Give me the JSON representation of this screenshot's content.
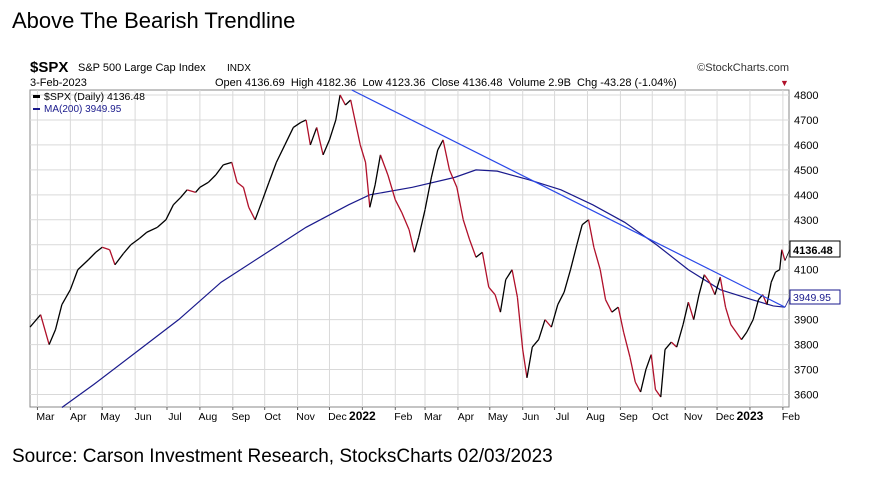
{
  "page": {
    "title": "Above The Bearish Trendline",
    "source": "Source: Carson Investment Research, StocksCharts 02/03/2023"
  },
  "header": {
    "symbol": "$SPX",
    "name": "S&P 500 Large Cap Index",
    "exchange": "INDX",
    "watermark": "©StockCharts.com",
    "date": "3-Feb-2023",
    "quote": "Open 4136.69  High 4182.36  Low 4123.36  Close 4136.48  Volume 2.9B  Chg -43.28 (-1.04%)",
    "chg_arrow": "▼"
  },
  "legend": {
    "price": "$SPX (Daily) 4136.48",
    "ma": "MA(200) 3949.95"
  },
  "colors": {
    "price_up": "#000000",
    "price_down": "#b0102a",
    "ma": "#1a1a8c",
    "trendline": "#2a48e8",
    "grid": "#d9d9d9"
  },
  "chart_data": {
    "type": "line",
    "title": "$SPX S&P 500 Large Cap Index",
    "xlabel": "",
    "ylabel": "",
    "ylim": [
      3550,
      4820
    ],
    "grid": true,
    "legend_position": "top-left",
    "x_ticks": [
      {
        "t": 7,
        "label": "Mar",
        "bold": false
      },
      {
        "t": 38,
        "label": "Apr",
        "bold": false
      },
      {
        "t": 68,
        "label": "May",
        "bold": false
      },
      {
        "t": 99,
        "label": "Jun",
        "bold": false
      },
      {
        "t": 129,
        "label": "Jul",
        "bold": false
      },
      {
        "t": 160,
        "label": "Aug",
        "bold": false
      },
      {
        "t": 191,
        "label": "Sep",
        "bold": false
      },
      {
        "t": 221,
        "label": "Oct",
        "bold": false
      },
      {
        "t": 252,
        "label": "Nov",
        "bold": false
      },
      {
        "t": 282,
        "label": "Dec",
        "bold": false
      },
      {
        "t": 313,
        "label": "2022",
        "bold": true
      },
      {
        "t": 344,
        "label": "Feb",
        "bold": false
      },
      {
        "t": 372,
        "label": "Mar",
        "bold": false
      },
      {
        "t": 403,
        "label": "Apr",
        "bold": false
      },
      {
        "t": 433,
        "label": "May",
        "bold": false
      },
      {
        "t": 464,
        "label": "Jun",
        "bold": false
      },
      {
        "t": 494,
        "label": "Jul",
        "bold": false
      },
      {
        "t": 525,
        "label": "Aug",
        "bold": false
      },
      {
        "t": 556,
        "label": "Sep",
        "bold": false
      },
      {
        "t": 586,
        "label": "Oct",
        "bold": false
      },
      {
        "t": 617,
        "label": "Nov",
        "bold": false
      },
      {
        "t": 647,
        "label": "Dec",
        "bold": false
      },
      {
        "t": 678,
        "label": "2023",
        "bold": true
      },
      {
        "t": 709,
        "label": "Feb",
        "bold": false
      }
    ],
    "y_ticks": [
      3600,
      3700,
      3800,
      3900,
      4000,
      4100,
      4200,
      4300,
      4400,
      4500,
      4600,
      4700,
      4800
    ],
    "series": [
      {
        "name": "$SPX (Daily)",
        "points": [
          [
            0,
            3870
          ],
          [
            10,
            3920
          ],
          [
            18,
            3800
          ],
          [
            24,
            3860
          ],
          [
            30,
            3960
          ],
          [
            38,
            4020
          ],
          [
            45,
            4100
          ],
          [
            55,
            4140
          ],
          [
            62,
            4170
          ],
          [
            68,
            4190
          ],
          [
            75,
            4180
          ],
          [
            80,
            4120
          ],
          [
            88,
            4165
          ],
          [
            95,
            4200
          ],
          [
            103,
            4225
          ],
          [
            110,
            4250
          ],
          [
            120,
            4270
          ],
          [
            128,
            4300
          ],
          [
            135,
            4360
          ],
          [
            142,
            4390
          ],
          [
            148,
            4420
          ],
          [
            156,
            4410
          ],
          [
            160,
            4430
          ],
          [
            168,
            4450
          ],
          [
            175,
            4480
          ],
          [
            182,
            4520
          ],
          [
            190,
            4530
          ],
          [
            195,
            4450
          ],
          [
            201,
            4430
          ],
          [
            206,
            4350
          ],
          [
            212,
            4300
          ],
          [
            219,
            4380
          ],
          [
            225,
            4450
          ],
          [
            232,
            4530
          ],
          [
            240,
            4600
          ],
          [
            248,
            4670
          ],
          [
            255,
            4690
          ],
          [
            260,
            4700
          ],
          [
            264,
            4600
          ],
          [
            270,
            4670
          ],
          [
            276,
            4560
          ],
          [
            282,
            4620
          ],
          [
            288,
            4700
          ],
          [
            292,
            4800
          ],
          [
            297,
            4760
          ],
          [
            302,
            4780
          ],
          [
            306,
            4700
          ],
          [
            311,
            4600
          ],
          [
            316,
            4530
          ],
          [
            320,
            4350
          ],
          [
            325,
            4440
          ],
          [
            330,
            4560
          ],
          [
            337,
            4480
          ],
          [
            344,
            4380
          ],
          [
            350,
            4330
          ],
          [
            357,
            4260
          ],
          [
            362,
            4170
          ],
          [
            366,
            4230
          ],
          [
            372,
            4340
          ],
          [
            378,
            4470
          ],
          [
            384,
            4580
          ],
          [
            389,
            4620
          ],
          [
            395,
            4500
          ],
          [
            402,
            4430
          ],
          [
            408,
            4300
          ],
          [
            414,
            4220
          ],
          [
            420,
            4150
          ],
          [
            426,
            4170
          ],
          [
            432,
            4030
          ],
          [
            438,
            4000
          ],
          [
            443,
            3930
          ],
          [
            448,
            4060
          ],
          [
            454,
            4100
          ],
          [
            459,
            3990
          ],
          [
            464,
            3780
          ],
          [
            468,
            3667
          ],
          [
            473,
            3790
          ],
          [
            479,
            3820
          ],
          [
            485,
            3900
          ],
          [
            491,
            3870
          ],
          [
            497,
            3960
          ],
          [
            503,
            4010
          ],
          [
            509,
            4100
          ],
          [
            515,
            4200
          ],
          [
            520,
            4280
          ],
          [
            526,
            4300
          ],
          [
            531,
            4190
          ],
          [
            537,
            4100
          ],
          [
            542,
            3980
          ],
          [
            548,
            3930
          ],
          [
            554,
            3950
          ],
          [
            559,
            3850
          ],
          [
            565,
            3750
          ],
          [
            570,
            3650
          ],
          [
            575,
            3610
          ],
          [
            580,
            3700
          ],
          [
            585,
            3760
          ],
          [
            589,
            3620
          ],
          [
            594,
            3590
          ],
          [
            598,
            3780
          ],
          [
            604,
            3810
          ],
          [
            609,
            3790
          ],
          [
            615,
            3880
          ],
          [
            620,
            3970
          ],
          [
            625,
            3900
          ],
          [
            630,
            4000
          ],
          [
            635,
            4080
          ],
          [
            640,
            4050
          ],
          [
            645,
            4000
          ],
          [
            650,
            4070
          ],
          [
            655,
            3950
          ],
          [
            660,
            3880
          ],
          [
            665,
            3850
          ],
          [
            670,
            3820
          ],
          [
            675,
            3850
          ],
          [
            681,
            3900
          ],
          [
            686,
            3980
          ],
          [
            690,
            4000
          ],
          [
            694,
            3960
          ],
          [
            698,
            4050
          ],
          [
            702,
            4090
          ],
          [
            706,
            4100
          ],
          [
            708,
            4180
          ],
          [
            711,
            4136.48
          ]
        ]
      },
      {
        "name": "MA(200)",
        "points": [
          [
            30,
            3548
          ],
          [
            60,
            3640
          ],
          [
            100,
            3770
          ],
          [
            140,
            3900
          ],
          [
            180,
            4050
          ],
          [
            220,
            4160
          ],
          [
            260,
            4270
          ],
          [
            300,
            4360
          ],
          [
            320,
            4400
          ],
          [
            360,
            4430
          ],
          [
            400,
            4470
          ],
          [
            420,
            4500
          ],
          [
            440,
            4495
          ],
          [
            470,
            4460
          ],
          [
            500,
            4420
          ],
          [
            530,
            4360
          ],
          [
            560,
            4290
          ],
          [
            590,
            4200
          ],
          [
            620,
            4100
          ],
          [
            650,
            4020
          ],
          [
            680,
            3980
          ],
          [
            700,
            3955
          ],
          [
            711,
            3949.95
          ]
        ]
      }
    ],
    "trendline": [
      [
        303,
        4840
      ],
      [
        711,
        3950
      ]
    ],
    "last_values": {
      "price": "4136.48",
      "ma": "3949.95"
    }
  }
}
